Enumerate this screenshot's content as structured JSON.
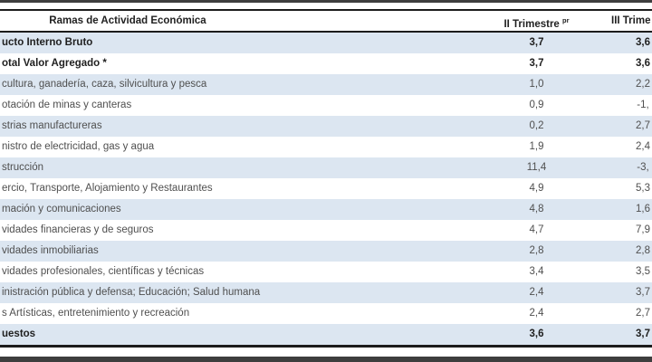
{
  "table": {
    "header": {
      "activity_label": "Ramas de Actividad Económica",
      "q2_label": "II Trimestre",
      "q2_sup": "pr",
      "q3_label": "III Trime"
    },
    "rows": [
      {
        "label": "ucto Interno Bruto",
        "q2": "3,7",
        "q3": "3,6"
      },
      {
        "label": "otal Valor Agregado *",
        "q2": "3,7",
        "q3": "3,6"
      },
      {
        "label": "cultura, ganadería, caza, silvicultura y pesca",
        "q2": "1,0",
        "q3": "2,2"
      },
      {
        "label": "otación de minas y canteras",
        "q2": "0,9",
        "q3": "-1,"
      },
      {
        "label": "strias manufactureras",
        "q2": "0,2",
        "q3": "2,7"
      },
      {
        "label": "nistro de electricidad, gas y agua",
        "q2": "1,9",
        "q3": "2,4"
      },
      {
        "label": "strucción",
        "q2": "11,4",
        "q3": "-3,"
      },
      {
        "label": "ercio, Transporte, Alojamiento y Restaurantes",
        "q2": "4,9",
        "q3": "5,3"
      },
      {
        "label": "mación y comunicaciones",
        "q2": "4,8",
        "q3": "1,6"
      },
      {
        "label": "vidades financieras y de seguros",
        "q2": "4,7",
        "q3": "7,9"
      },
      {
        "label": "vidades inmobiliarias",
        "q2": "2,8",
        "q3": "2,8"
      },
      {
        "label": "vidades profesionales, científicas y técnicas",
        "q2": "3,4",
        "q3": "3,5"
      },
      {
        "label": "inistración pública y defensa; Educación; Salud humana",
        "q2": "2,4",
        "q3": "3,7"
      },
      {
        "label": "s Artísticas, entretenimiento y recreación",
        "q2": "2,4",
        "q3": "2,7"
      },
      {
        "label": "uestos",
        "q2": "3,6",
        "q3": "3,7"
      }
    ],
    "colors": {
      "band_blue": "#dce6f1",
      "rule_black": "#1c1c1c",
      "strip_dark": "#3e3e3e",
      "text_regular": "#4f4f4f",
      "text_bold": "#1f1f1f"
    }
  }
}
